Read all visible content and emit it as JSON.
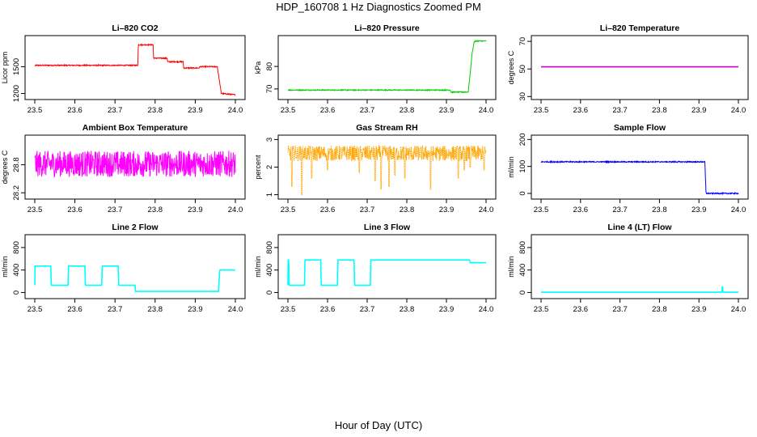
{
  "title": "HDP_160708  1 Hz Diagnostics Zoomed PM",
  "xlabel": "Hour of Day (UTC)",
  "colors": {
    "co2": "#ff0000",
    "pressure": "#00cc00",
    "temperature": "#cc00cc",
    "box_temp": "#ff00ff",
    "rh": "#ffa500",
    "sample_flow": "#0000ff",
    "line_flow": "#00ffff",
    "axis": "#000000"
  },
  "chart_data": [
    {
      "type": "line",
      "title": "Li–820 CO2",
      "ylabel": "Licor ppm",
      "xlim": [
        23.5,
        24.0
      ],
      "ylim": [
        1150,
        1830
      ],
      "x_ticks": [
        "23.5",
        "23.6",
        "23.7",
        "23.8",
        "23.9",
        "24.0"
      ],
      "y_ticks": [
        1200,
        1500
      ],
      "noise": 6,
      "color_key": "co2",
      "series": [
        {
          "x": [
            23.5,
            23.502,
            23.757,
            23.758,
            23.795,
            23.796,
            23.83,
            23.831,
            23.87,
            23.871,
            23.91,
            23.911,
            23.955,
            23.962,
            23.965,
            24.0
          ],
          "y": [
            1510,
            1515,
            1515,
            1745,
            1745,
            1595,
            1595,
            1555,
            1555,
            1485,
            1485,
            1500,
            1500,
            1290,
            1200,
            1185
          ]
        }
      ]
    },
    {
      "type": "line",
      "title": "Li–820 Pressure",
      "ylabel": "kPa",
      "xlim": [
        23.5,
        24.0
      ],
      "ylim": [
        66,
        93
      ],
      "x_ticks": [
        "23.5",
        "23.6",
        "23.7",
        "23.8",
        "23.9",
        "24.0"
      ],
      "y_ticks": [
        70,
        80
      ],
      "noise": 0.2,
      "color_key": "pressure",
      "series": [
        {
          "x": [
            23.5,
            23.91,
            23.911,
            23.955,
            23.96,
            23.965,
            23.97,
            23.975,
            24.0
          ],
          "y": [
            69.5,
            69.5,
            68.6,
            68.6,
            77,
            86,
            91,
            91.3,
            91.3
          ]
        }
      ]
    },
    {
      "type": "line",
      "title": "Li–820 Temperature",
      "ylabel": "degrees C",
      "xlim": [
        23.5,
        24.0
      ],
      "ylim": [
        29,
        73
      ],
      "x_ticks": [
        "23.5",
        "23.6",
        "23.7",
        "23.8",
        "23.9",
        "24.0"
      ],
      "y_ticks": [
        30,
        50,
        70
      ],
      "noise": 0,
      "color_key": "temperature",
      "series": [
        {
          "x": [
            23.5,
            24.0
          ],
          "y": [
            51.5,
            51.5
          ]
        }
      ]
    },
    {
      "type": "line",
      "title": "Ambient Box Temperature",
      "ylabel": "degrees C",
      "xlim": [
        23.5,
        24.0
      ],
      "ylim": [
        28.1,
        29.4
      ],
      "x_ticks": [
        "23.5",
        "23.6",
        "23.7",
        "23.8",
        "23.9",
        "24.0"
      ],
      "y_ticks": [
        28.2,
        28.8
      ],
      "noise": 0.28,
      "color_key": "box_temp",
      "series": [
        {
          "x": [
            23.5,
            24.0
          ],
          "y": [
            28.82,
            28.82
          ]
        }
      ]
    },
    {
      "type": "line",
      "title": "Gas Stream RH",
      "ylabel": "percent",
      "xlim": [
        23.5,
        24.0
      ],
      "ylim": [
        0.9,
        3.1
      ],
      "x_ticks": [
        "23.5",
        "23.6",
        "23.7",
        "23.8",
        "23.9",
        "24.0"
      ],
      "y_ticks": [
        1.0,
        2.0,
        3.0
      ],
      "noise": 0.28,
      "color_key": "rh",
      "series": [
        {
          "x": [
            23.5,
            24.0
          ],
          "y": [
            2.5,
            2.5
          ]
        }
      ],
      "dips": [
        [
          23.51,
          1.3
        ],
        [
          23.535,
          1.0
        ],
        [
          23.56,
          1.6
        ],
        [
          23.6,
          1.9
        ],
        [
          23.68,
          1.8
        ],
        [
          23.72,
          1.5
        ],
        [
          23.735,
          1.2
        ],
        [
          23.755,
          1.3
        ],
        [
          23.77,
          1.7
        ],
        [
          23.795,
          1.6
        ],
        [
          23.86,
          1.2
        ],
        [
          23.93,
          1.6
        ],
        [
          23.945,
          1.9
        ],
        [
          23.96,
          2.0
        ],
        [
          23.995,
          1.9
        ]
      ]
    },
    {
      "type": "line",
      "title": "Sample Flow",
      "ylabel": "ml/min",
      "xlim": [
        23.5,
        24.0
      ],
      "ylim": [
        -15,
        210
      ],
      "x_ticks": [
        "23.5",
        "23.6",
        "23.7",
        "23.8",
        "23.9",
        "24.0"
      ],
      "y_ticks": [
        0,
        100,
        200
      ],
      "noise": 2,
      "color_key": "sample_flow",
      "series": [
        {
          "x": [
            23.5,
            23.915,
            23.918,
            24.0
          ],
          "y": [
            117,
            117,
            0,
            0
          ]
        }
      ]
    },
    {
      "type": "line",
      "title": "Line 2 Flow",
      "ylabel": "ml/min",
      "xlim": [
        23.5,
        24.0
      ],
      "ylim": [
        -80,
        1000
      ],
      "x_ticks": [
        "23.5",
        "23.6",
        "23.7",
        "23.8",
        "23.9",
        "24.0"
      ],
      "y_ticks": [
        0,
        400,
        800
      ],
      "noise": 0,
      "color_key": "line_flow",
      "series": [
        {
          "x": [
            23.5,
            23.5,
            23.54,
            23.541,
            23.583,
            23.584,
            23.625,
            23.626,
            23.667,
            23.668,
            23.708,
            23.709,
            23.75,
            23.751,
            23.958,
            23.961,
            24.0
          ],
          "y": [
            130,
            470,
            470,
            130,
            130,
            470,
            470,
            130,
            130,
            470,
            470,
            130,
            130,
            20,
            20,
            400,
            400
          ]
        }
      ]
    },
    {
      "type": "line",
      "title": "Line 3 Flow",
      "ylabel": "ml/min",
      "xlim": [
        23.5,
        24.0
      ],
      "ylim": [
        -80,
        1000
      ],
      "x_ticks": [
        "23.5",
        "23.6",
        "23.7",
        "23.8",
        "23.9",
        "24.0"
      ],
      "y_ticks": [
        0,
        400,
        800
      ],
      "noise": 0,
      "color_key": "line_flow",
      "series": [
        {
          "x": [
            23.5,
            23.5,
            23.502,
            23.503,
            23.542,
            23.543,
            23.583,
            23.584,
            23.625,
            23.626,
            23.667,
            23.668,
            23.708,
            23.709,
            23.958,
            23.96,
            24.0
          ],
          "y": [
            130,
            580,
            580,
            130,
            130,
            580,
            580,
            130,
            130,
            580,
            580,
            130,
            130,
            580,
            580,
            530,
            530
          ]
        }
      ]
    },
    {
      "type": "line",
      "title": "Line 4 (LT) Flow",
      "ylabel": "ml/min",
      "xlim": [
        23.5,
        24.0
      ],
      "ylim": [
        -80,
        1000
      ],
      "x_ticks": [
        "23.5",
        "23.6",
        "23.7",
        "23.8",
        "23.9",
        "24.0"
      ],
      "y_ticks": [
        0,
        400,
        800
      ],
      "noise": 0,
      "color_key": "line_flow",
      "series": [
        {
          "x": [
            23.5,
            23.958,
            23.959,
            23.96,
            23.961,
            24.0
          ],
          "y": [
            5,
            5,
            100,
            100,
            5,
            5
          ]
        }
      ]
    }
  ]
}
